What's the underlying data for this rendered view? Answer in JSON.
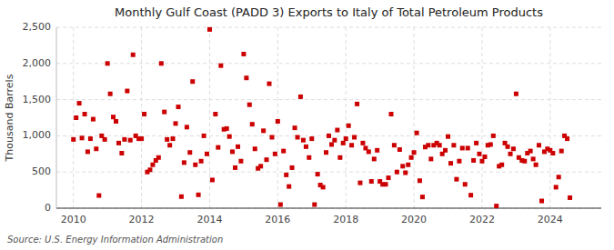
{
  "chart_data": {
    "type": "scatter",
    "title": "Monthly Gulf Coast (PADD 3) Exports to Italy of Total Petroleum Products",
    "ylabel": "Thousand Barrels",
    "source": "Source: U.S. Energy Information Administration",
    "color": "#cc0000",
    "marker": "square",
    "grid": true,
    "xlim": [
      2009.5,
      2025.5
    ],
    "ylim": [
      0,
      2500
    ],
    "xticks": [
      2010,
      2012,
      2014,
      2016,
      2018,
      2020,
      2022,
      2024
    ],
    "yticks": [
      0,
      500,
      {
        "value": 1000,
        "label": "1,000"
      },
      {
        "value": 1500,
        "label": "1,500"
      },
      {
        "value": 2000,
        "label": "2,000"
      },
      {
        "value": 2500,
        "label": "2,500"
      }
    ],
    "x": [
      2010.0,
      2010.08,
      2010.17,
      2010.25,
      2010.33,
      2010.42,
      2010.5,
      2010.58,
      2010.67,
      2010.75,
      2010.83,
      2010.92,
      2011.0,
      2011.08,
      2011.17,
      2011.25,
      2011.33,
      2011.42,
      2011.5,
      2011.58,
      2011.67,
      2011.75,
      2011.83,
      2011.92,
      2012.0,
      2012.08,
      2012.17,
      2012.25,
      2012.33,
      2012.42,
      2012.5,
      2012.58,
      2012.67,
      2012.75,
      2012.83,
      2012.92,
      2013.0,
      2013.08,
      2013.17,
      2013.25,
      2013.33,
      2013.42,
      2013.5,
      2013.58,
      2013.67,
      2013.75,
      2013.83,
      2013.92,
      2014.0,
      2014.08,
      2014.17,
      2014.25,
      2014.33,
      2014.42,
      2014.5,
      2014.58,
      2014.67,
      2014.75,
      2014.83,
      2014.92,
      2015.0,
      2015.08,
      2015.17,
      2015.25,
      2015.33,
      2015.42,
      2015.5,
      2015.58,
      2015.67,
      2015.75,
      2015.83,
      2015.92,
      2016.0,
      2016.08,
      2016.17,
      2016.25,
      2016.33,
      2016.42,
      2016.5,
      2016.58,
      2016.67,
      2016.75,
      2016.83,
      2016.92,
      2017.0,
      2017.08,
      2017.17,
      2017.25,
      2017.33,
      2017.42,
      2017.5,
      2017.58,
      2017.67,
      2017.75,
      2017.83,
      2017.92,
      2018.0,
      2018.08,
      2018.17,
      2018.25,
      2018.33,
      2018.42,
      2018.5,
      2018.58,
      2018.67,
      2018.75,
      2018.83,
      2018.92,
      2019.0,
      2019.08,
      2019.17,
      2019.25,
      2019.33,
      2019.42,
      2019.5,
      2019.58,
      2019.67,
      2019.75,
      2019.83,
      2019.92,
      2020.0,
      2020.08,
      2020.17,
      2020.25,
      2020.33,
      2020.42,
      2020.5,
      2020.58,
      2020.67,
      2020.75,
      2020.83,
      2020.92,
      2021.0,
      2021.08,
      2021.17,
      2021.25,
      2021.33,
      2021.42,
      2021.5,
      2021.58,
      2021.67,
      2021.75,
      2021.83,
      2021.92,
      2022.0,
      2022.08,
      2022.17,
      2022.25,
      2022.33,
      2022.42,
      2022.5,
      2022.58,
      2022.67,
      2022.75,
      2022.83,
      2022.92,
      2023.0,
      2023.08,
      2023.17,
      2023.25,
      2023.33,
      2023.42,
      2023.5,
      2023.58,
      2023.67,
      2023.75,
      2023.83,
      2023.92,
      2024.0,
      2024.08,
      2024.17,
      2024.25,
      2024.33,
      2024.42,
      2024.5,
      2024.58
    ],
    "values": [
      950,
      1250,
      1450,
      970,
      1300,
      780,
      960,
      1230,
      820,
      175,
      1000,
      950,
      2000,
      1580,
      1260,
      1200,
      900,
      760,
      950,
      1620,
      940,
      2120,
      1000,
      960,
      960,
      1300,
      500,
      530,
      600,
      660,
      700,
      2000,
      1330,
      950,
      870,
      960,
      1170,
      1400,
      160,
      630,
      1120,
      770,
      1750,
      600,
      185,
      650,
      1000,
      750,
      2470,
      390,
      1300,
      840,
      1970,
      1090,
      1100,
      990,
      780,
      560,
      850,
      650,
      2130,
      1800,
      1430,
      1160,
      820,
      550,
      580,
      1070,
      670,
      1720,
      980,
      750,
      1200,
      50,
      790,
      460,
      300,
      560,
      1110,
      980,
      1540,
      940,
      850,
      700,
      960,
      50,
      470,
      320,
      290,
      770,
      1000,
      880,
      940,
      1080,
      700,
      900,
      960,
      1140,
      870,
      980,
      1440,
      350,
      900,
      830,
      780,
      370,
      680,
      800,
      370,
      330,
      330,
      420,
      1300,
      870,
      500,
      810,
      580,
      490,
      600,
      700,
      770,
      1040,
      380,
      155,
      845,
      870,
      680,
      870,
      900,
      870,
      750,
      800,
      990,
      620,
      870,
      400,
      650,
      830,
      330,
      830,
      180,
      660,
      900,
      750,
      650,
      710,
      870,
      880,
      1000,
      30,
      580,
      600,
      900,
      850,
      750,
      820,
      1580,
      700,
      660,
      650,
      760,
      790,
      680,
      600,
      870,
      100,
      780,
      820,
      800,
      760,
      290,
      430,
      790,
      1000,
      960,
      145
    ]
  }
}
